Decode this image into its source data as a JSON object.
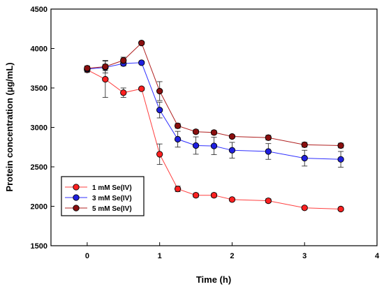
{
  "chart_data": {
    "type": "line",
    "xlabel": "Time (h)",
    "ylabel": "Protein concentration (µg/mL)",
    "xlim": [
      -0.5,
      4
    ],
    "ylim": [
      1500,
      4500
    ],
    "xticks": [
      "0",
      "1",
      "2",
      "3",
      "4"
    ],
    "yticks": [
      "1500",
      "2000",
      "2500",
      "3000",
      "3500",
      "4000",
      "4500"
    ],
    "grid": false,
    "legend_position": "bottom-left",
    "x": [
      0,
      0.25,
      0.5,
      0.75,
      1,
      1.25,
      1.5,
      1.75,
      2,
      2.5,
      3,
      3.5
    ],
    "series": [
      {
        "name": "1 mM Se(IV)",
        "color": "#ff2020",
        "line_color": "#ff4040",
        "values": [
          3730,
          3610,
          3440,
          3490,
          2660,
          2220,
          2140,
          2140,
          2085,
          2070,
          1980,
          1965
        ],
        "errors": [
          30,
          230,
          60,
          20,
          130,
          35,
          25,
          25,
          20,
          25,
          20,
          20
        ]
      },
      {
        "name": "3 mM Se(IV)",
        "color": "#2020e0",
        "line_color": "#3030ff",
        "values": [
          3740,
          3760,
          3810,
          3820,
          3220,
          2850,
          2770,
          2765,
          2710,
          2695,
          2610,
          2595
        ],
        "errors": [
          30,
          40,
          30,
          20,
          100,
          100,
          110,
          110,
          100,
          100,
          100,
          100
        ]
      },
      {
        "name": "5 mM Se(IV)",
        "color": "#8a0f0f",
        "line_color": "#b02020",
        "values": [
          3750,
          3770,
          3850,
          4070,
          3460,
          3020,
          2945,
          2935,
          2885,
          2870,
          2780,
          2770
        ],
        "errors": [
          30,
          80,
          40,
          20,
          120,
          30,
          25,
          25,
          20,
          30,
          30,
          30
        ]
      }
    ]
  }
}
